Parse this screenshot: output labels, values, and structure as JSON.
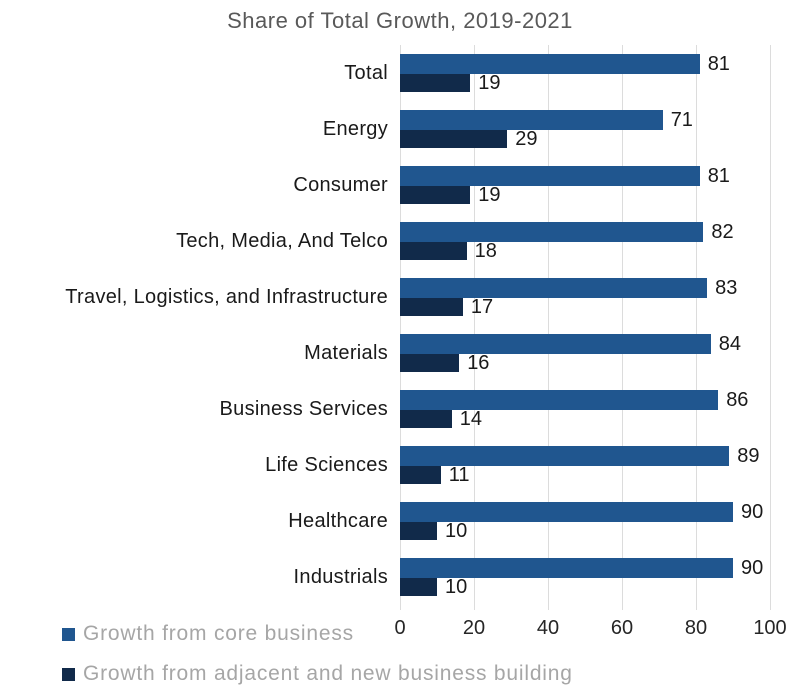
{
  "chart_data": {
    "type": "bar",
    "orientation": "horizontal",
    "title": "Share of Total Growth, 2019-2021",
    "categories": [
      "Total",
      "Energy",
      "Consumer",
      "Tech, Media, And Telco",
      "Travel, Logistics, and Infrastructure",
      "Materials",
      "Business Services",
      "Life Sciences",
      "Healthcare",
      "Industrials"
    ],
    "series": [
      {
        "name": "Growth from core business",
        "color": "#20568F",
        "values": [
          81,
          71,
          81,
          82,
          83,
          84,
          86,
          89,
          90,
          90
        ]
      },
      {
        "name": "Growth from adjacent and new business building",
        "color": "#112A4A",
        "values": [
          19,
          29,
          19,
          18,
          17,
          16,
          14,
          11,
          10,
          10
        ]
      }
    ],
    "xlim": [
      0,
      100
    ],
    "x_ticks": [
      0,
      20,
      40,
      60,
      80,
      100
    ],
    "grid": "vertical",
    "gridline_color": "#DCDCDC",
    "value_labels": true,
    "legend_position": "bottom-left",
    "title_color": "#595959",
    "legend_text_color": "#A6A6A6"
  }
}
